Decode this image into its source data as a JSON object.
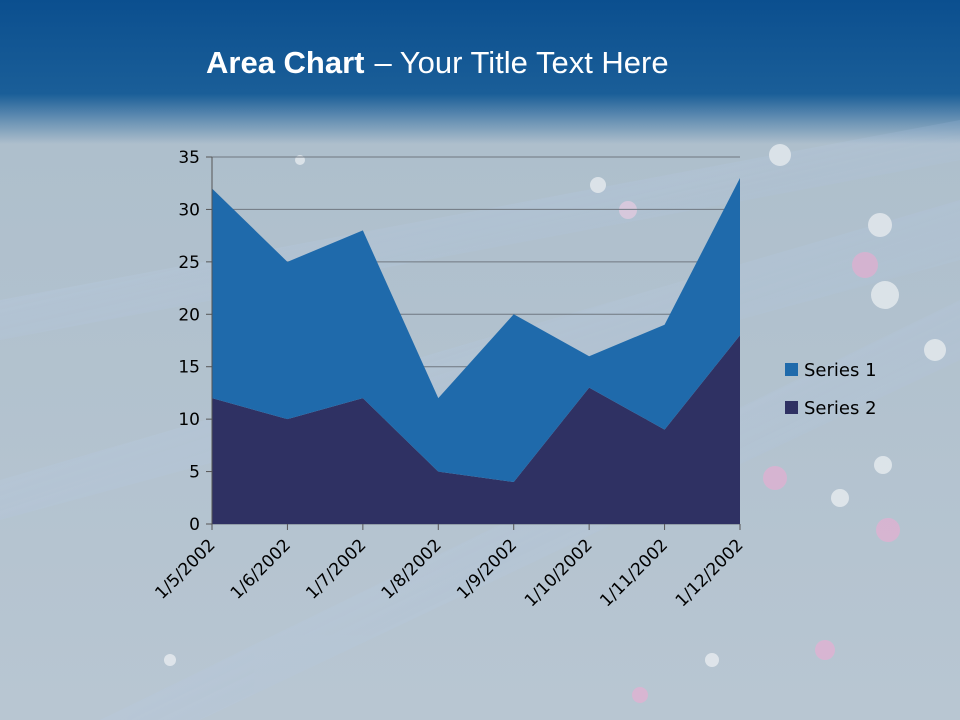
{
  "chart_data": {
    "type": "area",
    "stacked": true,
    "title": {
      "bold": "Area Chart",
      "text": "– Your Title Text Here"
    },
    "categories": [
      "1/5/2002",
      "1/6/2002",
      "1/7/2002",
      "1/8/2002",
      "1/9/2002",
      "1/10/2002",
      "1/11/2002",
      "1/12/2002"
    ],
    "series": [
      {
        "name": "Series 1",
        "color": "#1f6aab",
        "values": [
          20,
          15,
          16,
          7,
          16,
          3,
          10,
          15
        ]
      },
      {
        "name": "Series 2",
        "color": "#2f3163",
        "values": [
          12,
          10,
          12,
          5,
          4,
          13,
          9,
          18
        ]
      }
    ],
    "ylim": [
      0,
      35
    ],
    "yticks": [
      0,
      5,
      10,
      15,
      20,
      25,
      30,
      35
    ],
    "grid": true,
    "legend": "right"
  }
}
